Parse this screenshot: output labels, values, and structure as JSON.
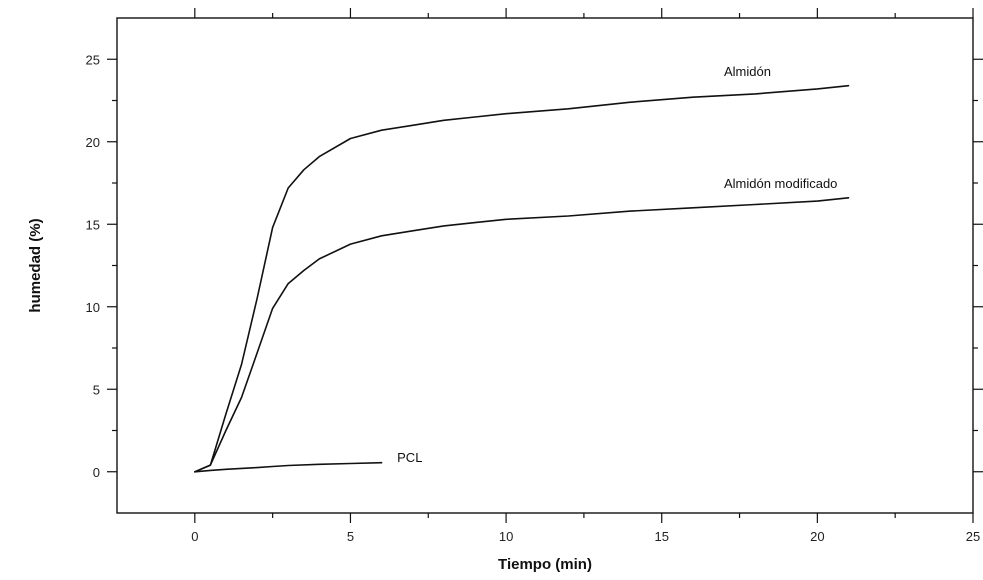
{
  "chart_data": {
    "type": "line",
    "title": "",
    "xlabel": "Tiempo (min)",
    "ylabel": "humedad (%)",
    "xlim": [
      -2.5,
      25
    ],
    "ylim": [
      -2.5,
      27.5
    ],
    "x_ticks": [
      0,
      5,
      10,
      15,
      20,
      25
    ],
    "y_ticks": [
      0,
      5,
      10,
      15,
      20,
      25
    ],
    "x_tick_labels": [
      "0",
      "5",
      "10",
      "15",
      "20",
      "25"
    ],
    "y_tick_labels": [
      "0",
      "5",
      "10",
      "15",
      "20",
      "25"
    ],
    "grid": false,
    "legend": "none",
    "series": [
      {
        "name": "Almidón",
        "label_at": [
          17,
          24.0
        ],
        "x": [
          0,
          0.5,
          1,
          1.5,
          2,
          2.5,
          3,
          3.5,
          4,
          5,
          6,
          7,
          8,
          9,
          10,
          12,
          14,
          16,
          18,
          20,
          21
        ],
        "values": [
          0,
          0.4,
          3.5,
          6.5,
          10.5,
          14.8,
          17.2,
          18.3,
          19.1,
          20.2,
          20.7,
          21.0,
          21.3,
          21.5,
          21.7,
          22.0,
          22.4,
          22.7,
          22.9,
          23.2,
          23.4
        ]
      },
      {
        "name": "Almidón modificado",
        "label_at": [
          17,
          17.2
        ],
        "x": [
          0,
          0.5,
          1,
          1.5,
          2,
          2.5,
          3,
          3.5,
          4,
          5,
          6,
          7,
          8,
          9,
          10,
          12,
          14,
          16,
          18,
          20,
          21
        ],
        "values": [
          0,
          0.4,
          2.5,
          4.5,
          7.2,
          9.9,
          11.4,
          12.2,
          12.9,
          13.8,
          14.3,
          14.6,
          14.9,
          15.1,
          15.3,
          15.5,
          15.8,
          16.0,
          16.2,
          16.4,
          16.6
        ]
      },
      {
        "name": "PCL",
        "label_at": [
          6.5,
          0.6
        ],
        "x": [
          0,
          0.5,
          1,
          1.5,
          2,
          2.5,
          3,
          4,
          5,
          6
        ],
        "values": [
          0,
          0.08,
          0.15,
          0.2,
          0.25,
          0.32,
          0.38,
          0.45,
          0.5,
          0.55
        ]
      }
    ]
  }
}
